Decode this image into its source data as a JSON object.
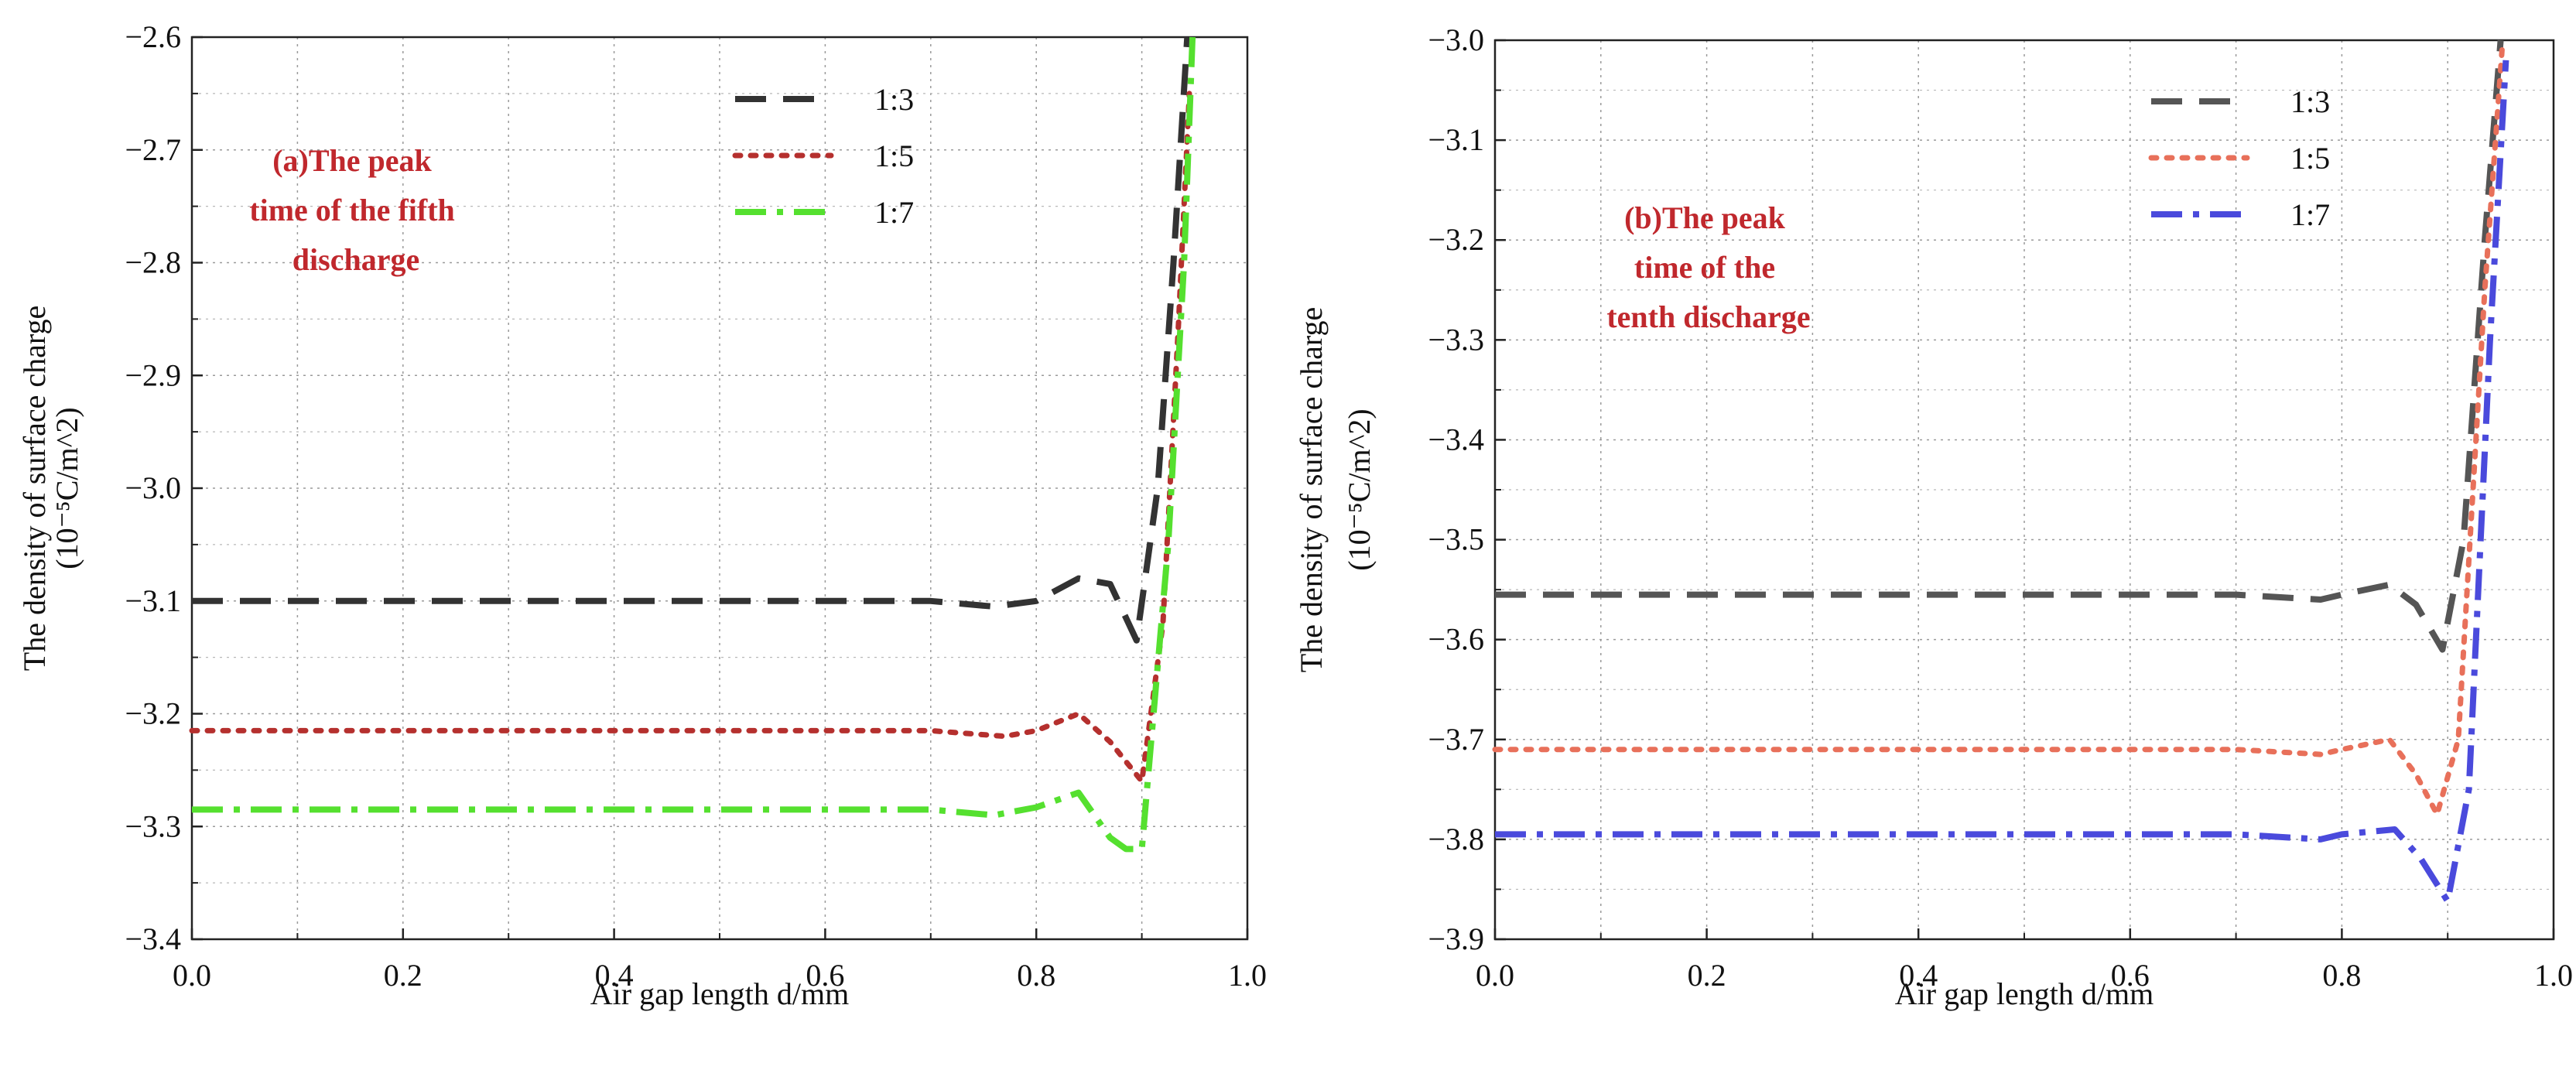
{
  "chart_data": [
    {
      "type": "line",
      "panel": "a",
      "xlabel": "Air gap length d/mm",
      "ylabel_line1": "The density of surface charge",
      "ylabel_line2": "(10⁻⁵C/m^2)",
      "xlim": [
        0.0,
        1.0
      ],
      "ylim": [
        -3.4,
        -2.6
      ],
      "xticks": [
        0.0,
        0.2,
        0.4,
        0.6,
        0.8,
        1.0
      ],
      "xtick_labels": [
        "0.0",
        "0.2",
        "0.4",
        "0.6",
        "0.8",
        "1.0"
      ],
      "yticks": [
        -3.4,
        -3.3,
        -3.2,
        -3.1,
        -3.0,
        -2.9,
        -2.8,
        -2.7,
        -2.6
      ],
      "ytick_labels": [
        "−3.4",
        "−3.3",
        "−3.2",
        "−3.1",
        "−3.0",
        "−2.9",
        "−2.8",
        "−2.7",
        "−2.6"
      ],
      "grid": true,
      "legend_position": "top-right",
      "annotation": [
        "(a)The peak",
        "time of the fifth",
        "discharge"
      ],
      "annotation_color": "#c0282d",
      "series": [
        {
          "name": "1:3",
          "color": "#333333",
          "style": "dash",
          "x": [
            0.0,
            0.2,
            0.4,
            0.6,
            0.7,
            0.76,
            0.8,
            0.84,
            0.87,
            0.895,
            0.915,
            0.93,
            0.943
          ],
          "y": [
            -3.1,
            -3.1,
            -3.1,
            -3.1,
            -3.1,
            -3.105,
            -3.1,
            -3.08,
            -3.085,
            -3.135,
            -3.0,
            -2.8,
            -2.6
          ]
        },
        {
          "name": "1:5",
          "color": "#b5302e",
          "style": "dot",
          "x": [
            0.0,
            0.2,
            0.4,
            0.6,
            0.7,
            0.77,
            0.8,
            0.84,
            0.87,
            0.9,
            0.92,
            0.935,
            0.945
          ],
          "y": [
            -3.215,
            -3.215,
            -3.215,
            -3.215,
            -3.215,
            -3.22,
            -3.215,
            -3.2,
            -3.225,
            -3.26,
            -3.12,
            -2.85,
            -2.65
          ]
        },
        {
          "name": "1:7",
          "color": "#55e02f",
          "style": "dashdot",
          "x": [
            0.0,
            0.2,
            0.4,
            0.6,
            0.7,
            0.76,
            0.8,
            0.84,
            0.87,
            0.885,
            0.9,
            0.925,
            0.94,
            0.948
          ],
          "y": [
            -3.285,
            -3.285,
            -3.285,
            -3.285,
            -3.285,
            -3.29,
            -3.283,
            -3.27,
            -3.31,
            -3.32,
            -3.32,
            -3.05,
            -2.8,
            -2.6
          ]
        }
      ]
    },
    {
      "type": "line",
      "panel": "b",
      "xlabel": "Air gap length d/mm",
      "ylabel_line1": "The density of surface charge",
      "ylabel_line2": "(10⁻⁵C/m^2)",
      "xlim": [
        0.0,
        1.0
      ],
      "ylim": [
        -3.9,
        -3.0
      ],
      "xticks": [
        0.0,
        0.2,
        0.4,
        0.6,
        0.8,
        1.0
      ],
      "xtick_labels": [
        "0.0",
        "0.2",
        "0.4",
        "0.6",
        "0.8",
        "1.0"
      ],
      "yticks": [
        -3.9,
        -3.8,
        -3.7,
        -3.6,
        -3.5,
        -3.4,
        -3.3,
        -3.2,
        -3.1,
        -3.0
      ],
      "ytick_labels": [
        "−3.9",
        "−3.8",
        "−3.7",
        "−3.6",
        "−3.5",
        "−3.4",
        "−3.3",
        "−3.2",
        "−3.1",
        "−3.0"
      ],
      "grid": true,
      "legend_position": "top-right",
      "annotation": [
        "(b)The peak",
        "time of the",
        "tenth discharge"
      ],
      "annotation_color": "#c0282d",
      "series": [
        {
          "name": "1:3",
          "color": "#555555",
          "style": "dash",
          "x": [
            0.0,
            0.2,
            0.4,
            0.6,
            0.7,
            0.78,
            0.8,
            0.845,
            0.87,
            0.895,
            0.915,
            0.935,
            0.95
          ],
          "y": [
            -3.555,
            -3.555,
            -3.555,
            -3.555,
            -3.555,
            -3.56,
            -3.555,
            -3.545,
            -3.565,
            -3.61,
            -3.5,
            -3.2,
            -3.0
          ]
        },
        {
          "name": "1:5",
          "color": "#e8705a",
          "style": "dot",
          "x": [
            0.0,
            0.2,
            0.4,
            0.6,
            0.7,
            0.78,
            0.8,
            0.845,
            0.87,
            0.89,
            0.91,
            0.935,
            0.952
          ],
          "y": [
            -3.71,
            -3.71,
            -3.71,
            -3.71,
            -3.71,
            -3.715,
            -3.71,
            -3.7,
            -3.735,
            -3.775,
            -3.7,
            -3.25,
            -3.0
          ]
        },
        {
          "name": "1:7",
          "color": "#4a4adc",
          "style": "dashdot",
          "x": [
            0.0,
            0.2,
            0.4,
            0.6,
            0.7,
            0.78,
            0.8,
            0.85,
            0.875,
            0.9,
            0.92,
            0.94,
            0.955
          ],
          "y": [
            -3.795,
            -3.795,
            -3.795,
            -3.795,
            -3.795,
            -3.8,
            -3.795,
            -3.79,
            -3.82,
            -3.862,
            -3.75,
            -3.3,
            -3.02
          ]
        }
      ]
    }
  ]
}
